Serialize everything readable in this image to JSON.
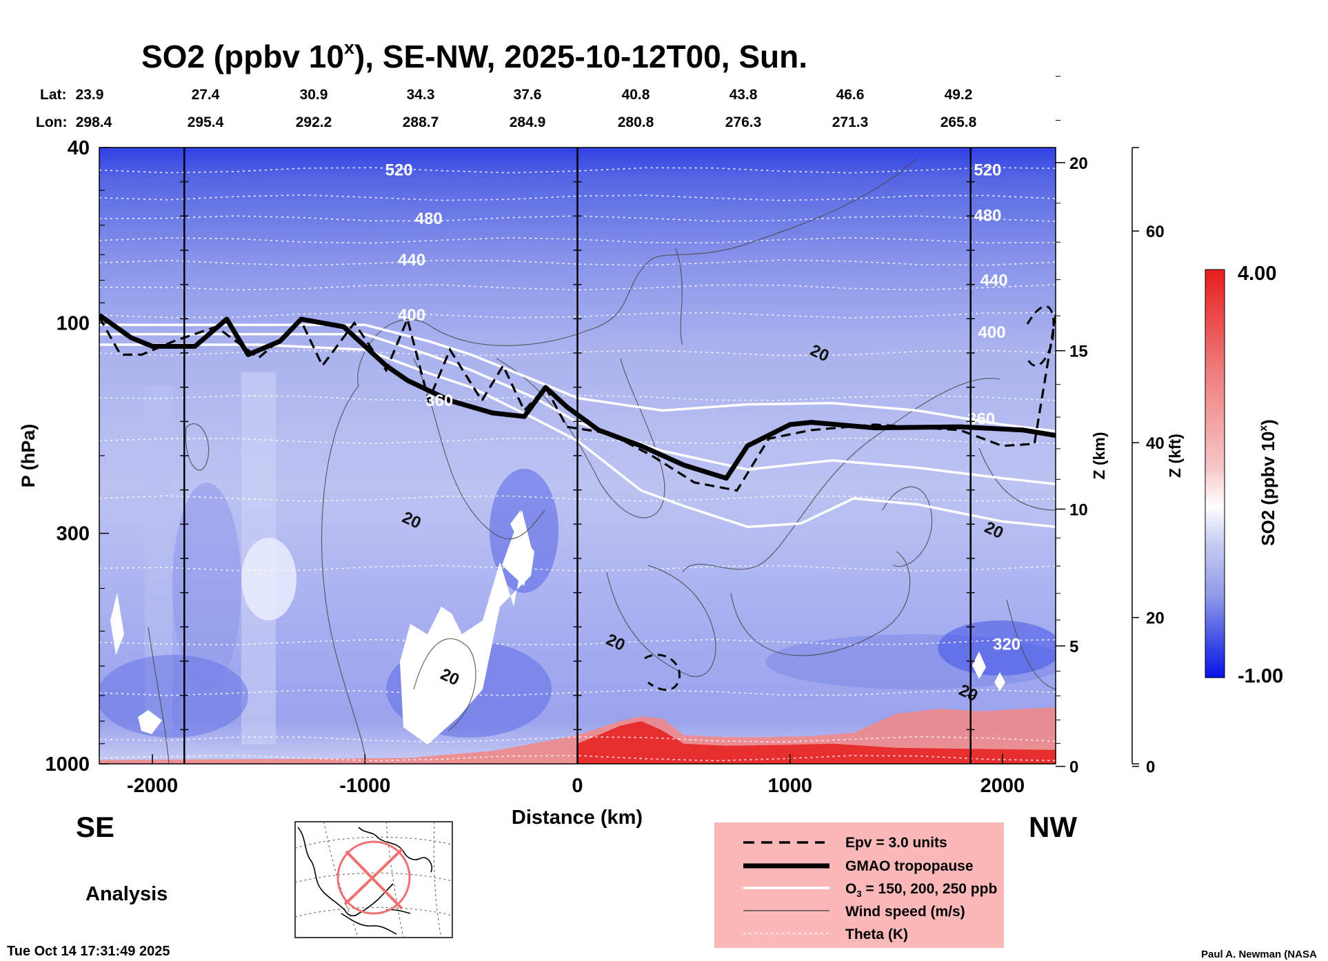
{
  "title_parts": {
    "prefix": "SO2 (ppbv 10",
    "exp": "x",
    "suffix": "), SE-NW, 2025-10-12T00, Sun."
  },
  "lat_label": "Lat:",
  "lon_label": "Lon:",
  "lat_values": [
    "23.9",
    "27.4",
    "30.9",
    "34.3",
    "37.6",
    "40.8",
    "43.8",
    "46.6",
    "49.2"
  ],
  "lon_values": [
    "298.4",
    "295.4",
    "292.2",
    "288.7",
    "284.9",
    "280.8",
    "276.3",
    "271.3",
    "265.8"
  ],
  "direction_left": "SE",
  "direction_right": "NW",
  "analysis_label": "Analysis",
  "timestamp": "Tue Oct 14 17:31:49 2025",
  "credit": "Paul A. Newman (NASA",
  "colorbar": {
    "max_label": "4.00",
    "min_label": "-1.00",
    "label_prefix": "SO2 (ppbv 10",
    "label_exp": "x",
    "label_suffix": ")",
    "colors": [
      "#0a14e6",
      "#5566e6",
      "#8f9ae8",
      "#c8ccf2",
      "#ffffff",
      "#f6c4c4",
      "#ef7d7d",
      "#e81e1e"
    ]
  },
  "legend": [
    {
      "label": "Epv = 3.0 units",
      "style": "dashed"
    },
    {
      "label": "GMAO tropopause",
      "style": "thick"
    },
    {
      "label": "O",
      "sub": "3",
      "rest": " = 150, 200, 250 ppb",
      "style": "white"
    },
    {
      "label": "Wind speed (m/s)",
      "style": "thin"
    },
    {
      "label": "Theta (K)",
      "style": "dotted"
    }
  ],
  "legend_bg": "#fbb8b8",
  "chart_data": {
    "type": "heatmap",
    "xlabel": "Distance (km)",
    "ylabel": "P (hPa)",
    "y2label": "Z (km)",
    "y3label": "Z (kft)",
    "xlim": [
      -2250,
      2250
    ],
    "ylim_hpa": [
      1000,
      40
    ],
    "x_ticks": [
      -2000,
      -1000,
      0,
      1000,
      2000
    ],
    "p_ticks": [
      40,
      100,
      300,
      1000
    ],
    "z_km_ticks": [
      0,
      5,
      10,
      15,
      20
    ],
    "z_kft_ticks": [
      0,
      20,
      40,
      60
    ],
    "color_range": [
      -1.0,
      4.0
    ],
    "theta_labels": [
      {
        "text": "520",
        "x": -840,
        "p": 45
      },
      {
        "text": "480",
        "x": -700,
        "p": 58
      },
      {
        "text": "440",
        "x": -780,
        "p": 72
      },
      {
        "text": "400",
        "x": -780,
        "p": 96
      },
      {
        "text": "360",
        "x": -650,
        "p": 150
      },
      {
        "text": "520",
        "x": 1930,
        "p": 45
      },
      {
        "text": "480",
        "x": 1930,
        "p": 57
      },
      {
        "text": "440",
        "x": 1960,
        "p": 80
      },
      {
        "text": "400",
        "x": 1950,
        "p": 105
      },
      {
        "text": "360",
        "x": 1900,
        "p": 165
      },
      {
        "text": "320",
        "x": 2020,
        "p": 535
      }
    ],
    "wind_labels": [
      {
        "text": "20",
        "x": 1140,
        "p": 117
      },
      {
        "text": "20",
        "x": -780,
        "p": 280
      },
      {
        "text": "20",
        "x": 1960,
        "p": 295
      },
      {
        "text": "20",
        "x": 180,
        "p": 530
      },
      {
        "text": "20",
        "x": -600,
        "p": 635
      },
      {
        "text": "20",
        "x": 1840,
        "p": 690
      }
    ],
    "tropopause": {
      "x": [
        -2250,
        -2100,
        -2000,
        -1800,
        -1650,
        -1550,
        -1400,
        -1300,
        -1100,
        -900,
        -800,
        -600,
        -400,
        -250,
        -150,
        -50,
        100,
        300,
        500,
        700,
        800,
        1000,
        1100,
        1400,
        1800,
        2100,
        2250
      ],
      "p": [
        96,
        108,
        113,
        113,
        98,
        118,
        110,
        98,
        102,
        125,
        135,
        150,
        160,
        163,
        140,
        155,
        175,
        190,
        210,
        225,
        190,
        170,
        168,
        173,
        172,
        175,
        180
      ]
    },
    "epv": {
      "x": [
        -2250,
        -2150,
        -2050,
        -1900,
        -1700,
        -1500,
        -1300,
        -1200,
        -1050,
        -900,
        -800,
        -700,
        -600,
        -450,
        -350,
        -250,
        -150,
        -50,
        150,
        350,
        550,
        750,
        900,
        1100,
        1400,
        1800,
        2000,
        2150,
        2250
      ],
      "p": [
        97,
        118,
        118,
        110,
        102,
        120,
        99,
        125,
        100,
        128,
        98,
        150,
        115,
        150,
        125,
        158,
        140,
        172,
        178,
        200,
        230,
        240,
        183,
        175,
        170,
        175,
        190,
        188,
        96
      ]
    },
    "o3_150": {
      "x": [
        -2250,
        -1500,
        -1000,
        -700,
        -500,
        -200,
        0,
        400,
        800,
        1200,
        1600,
        2000,
        2250
      ],
      "p": [
        101,
        101,
        101,
        110,
        118,
        135,
        148,
        158,
        153,
        152,
        158,
        170,
        176
      ]
    },
    "o3_200": {
      "x": [
        -2250,
        -1500,
        -1000,
        -700,
        -500,
        -200,
        0,
        400,
        800,
        1200,
        1600,
        2000,
        2250
      ],
      "p": [
        106,
        106,
        106,
        118,
        128,
        148,
        168,
        195,
        215,
        205,
        213,
        225,
        232
      ]
    },
    "o3_250": {
      "x": [
        -2250,
        -1500,
        -1000,
        -700,
        -500,
        -200,
        0,
        300,
        500,
        800,
        1050,
        1300,
        1600,
        2000,
        2250
      ],
      "p": [
        112,
        112,
        115,
        130,
        140,
        165,
        185,
        240,
        260,
        290,
        285,
        250,
        258,
        282,
        290
      ]
    },
    "theta_levels": [
      {
        "theta": 520,
        "p": 45
      },
      {
        "theta": 500,
        "p": 52
      },
      {
        "theta": 480,
        "p": 58
      },
      {
        "theta": 460,
        "p": 65
      },
      {
        "theta": 440,
        "p": 73
      },
      {
        "theta": 420,
        "p": 83
      },
      {
        "theta": 400,
        "p": 96
      },
      {
        "theta": 380,
        "p": 117
      },
      {
        "theta": 360,
        "p": 148
      },
      {
        "theta": 350,
        "p": 185
      },
      {
        "theta": 340,
        "p": 250
      },
      {
        "theta": 330,
        "p": 360
      },
      {
        "theta": 320,
        "p": 530
      },
      {
        "theta": 310,
        "p": 690
      },
      {
        "theta": 300,
        "p": 880
      },
      {
        "theta": 290,
        "p": 970
      }
    ],
    "so2_surface": {
      "x": [
        -2250,
        -1500,
        -800,
        -400,
        -100,
        0,
        100,
        200,
        300,
        400,
        500,
        700,
        900,
        1100,
        1300,
        1500,
        1700,
        1900,
        2100,
        2250
      ],
      "p_top": [
        980,
        975,
        970,
        935,
        880,
        860,
        830,
        800,
        780,
        790,
        860,
        870,
        870,
        865,
        850,
        770,
        750,
        760,
        750,
        745
      ],
      "value": 2.5
    }
  }
}
